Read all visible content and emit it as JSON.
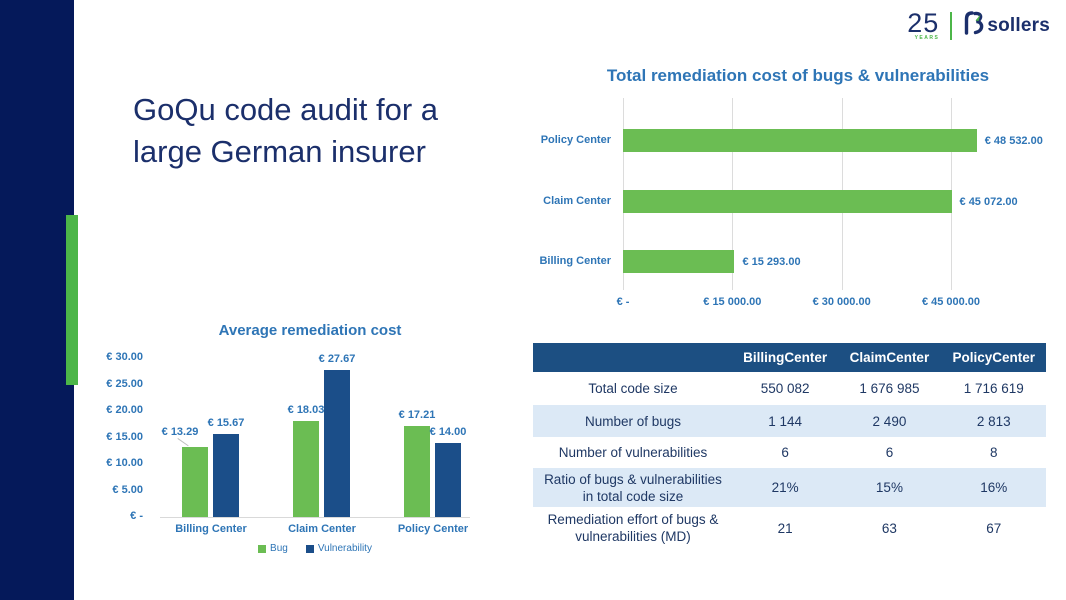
{
  "slide": {
    "title_line1": "GoQu code audit for a",
    "title_line2": "large German insurer"
  },
  "logo": {
    "years_number": "25",
    "years_label": "YEARS",
    "brand": "sollers"
  },
  "colors": {
    "sidebar_navy": "#05195A",
    "accent_green": "#4CB648",
    "chart_green": "#6BBD53",
    "chart_navy": "#1B4E89",
    "header_navy": "#1C4F82",
    "alt_row_blue": "#DCE9F6",
    "chart_text_blue": "#2E75B6",
    "title_navy": "#1B2F6B"
  },
  "chart_data": [
    {
      "type": "bar",
      "orientation": "horizontal",
      "title": "Total remediation cost of bugs & vulnerabilities",
      "categories": [
        "Policy Center",
        "Claim Center",
        "Billing Center"
      ],
      "values": [
        48532,
        45072,
        15293
      ],
      "value_labels": [
        "€ 48 532.00",
        "€ 45 072.00",
        "€ 15 293.00"
      ],
      "bar_color": "#6BBD53",
      "x_ticks": [
        {
          "value": 0,
          "label": "€ -"
        },
        {
          "value": 15000,
          "label": "€ 15 000.00"
        },
        {
          "value": 30000,
          "label": "€ 30 000.00"
        },
        {
          "value": 45000,
          "label": "€ 45 000.00"
        }
      ],
      "xlim": [
        0,
        45000
      ],
      "grid": "vertical"
    },
    {
      "type": "bar",
      "orientation": "vertical",
      "title": "Average remediation cost",
      "categories": [
        "Billing Center",
        "Claim Center",
        "Policy Center"
      ],
      "series": [
        {
          "name": "Bug",
          "color": "#6BBD53",
          "values": [
            13.29,
            18.03,
            17.21
          ],
          "value_labels": [
            "€ 13.29",
            "€ 18.03",
            "€ 17.21"
          ]
        },
        {
          "name": "Vulnerability",
          "color": "#1B4E89",
          "values": [
            15.67,
            27.67,
            14.0
          ],
          "value_labels": [
            "€ 15.67",
            "€ 27.67",
            "€ 14.00"
          ]
        }
      ],
      "y_ticks": [
        {
          "value": 30,
          "label": "€ 30.00"
        },
        {
          "value": 25,
          "label": "€ 25.00"
        },
        {
          "value": 20,
          "label": "€ 20.00"
        },
        {
          "value": 15,
          "label": "€ 15.00"
        },
        {
          "value": 10,
          "label": "€ 10.00"
        },
        {
          "value": 5,
          "label": "€ 5.00"
        },
        {
          "value": 0,
          "label": "€ -"
        }
      ],
      "ylim": [
        0,
        30
      ],
      "legend_position": "bottom",
      "legend": [
        "Bug",
        "Vulnerability"
      ],
      "grid": "none"
    }
  ],
  "table": {
    "columns": [
      "",
      "BillingCenter",
      "ClaimCenter",
      "PolicyCenter"
    ],
    "rows": [
      {
        "label": "Total code size",
        "label_lines": [
          "Total code size"
        ],
        "values": [
          "550 082",
          "1 676 985",
          "1 716 619"
        ]
      },
      {
        "label": "Number of bugs",
        "label_lines": [
          "Number of bugs"
        ],
        "values": [
          "1 144",
          "2 490",
          "2 813"
        ]
      },
      {
        "label": "Number of vulnerabilities",
        "label_lines": [
          "Number of vulnerabilities"
        ],
        "values": [
          "6",
          "6",
          "8"
        ]
      },
      {
        "label": "Ratio of bugs & vulnerabilities in total code size",
        "label_lines": [
          "Ratio of bugs & vulnerabilities",
          "in total code size"
        ],
        "values": [
          "21%",
          "15%",
          "16%"
        ]
      },
      {
        "label": "Remediation effort of bugs & vulnerabilities (MD)",
        "label_lines": [
          "Remediation effort of bugs &",
          "vulnerabilities (MD)"
        ],
        "values": [
          "21",
          "63",
          "67"
        ]
      }
    ]
  }
}
